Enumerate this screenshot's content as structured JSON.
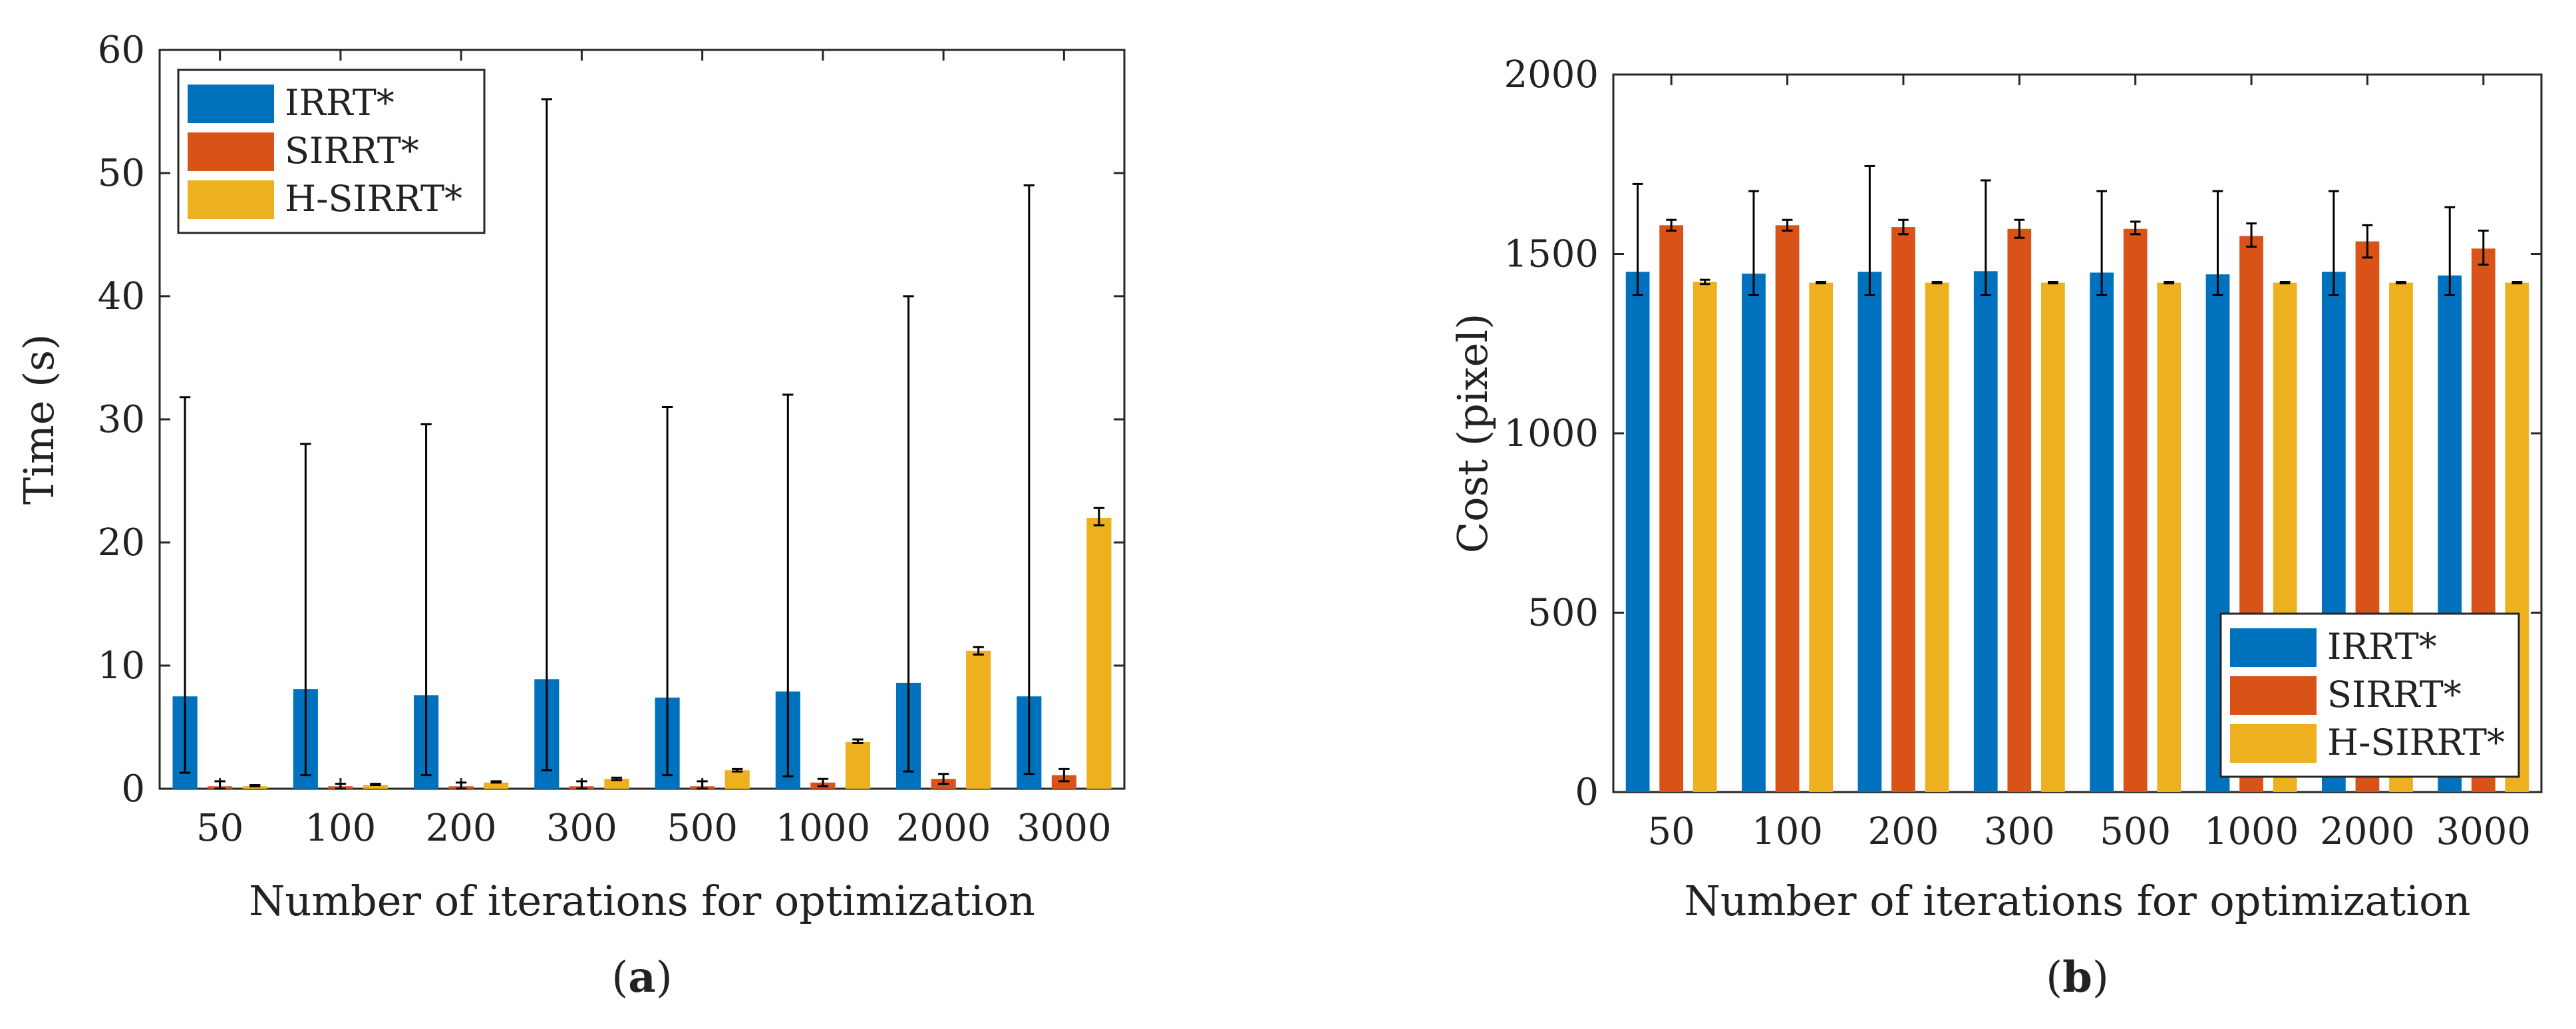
{
  "chart_data": [
    {
      "type": "bar",
      "panel_label": "a",
      "title": "",
      "xlabel": "Number of iterations for optimization",
      "ylabel": "Time (s)",
      "categories": [
        "50",
        "100",
        "200",
        "300",
        "500",
        "1000",
        "2000",
        "3000"
      ],
      "ylim": [
        0,
        60
      ],
      "yticks": [
        0,
        10,
        20,
        30,
        40,
        50,
        60
      ],
      "legend_position": "top-left",
      "series": [
        {
          "name": "IRRT*",
          "color": "#0072BD",
          "values": [
            7.5,
            8.1,
            7.6,
            8.9,
            7.4,
            7.9,
            8.6,
            7.5
          ],
          "err_low": [
            1.3,
            1.1,
            1.1,
            1.5,
            1.1,
            1.0,
            1.4,
            1.2
          ],
          "err_high": [
            31.8,
            28.0,
            29.6,
            56.0,
            31.0,
            32.0,
            40.0,
            49.0
          ]
        },
        {
          "name": "SIRRT*",
          "color": "#D95319",
          "values": [
            0.2,
            0.2,
            0.2,
            0.2,
            0.2,
            0.5,
            0.8,
            1.1
          ],
          "err_low": [
            0.0,
            0.0,
            0.0,
            0.0,
            0.0,
            0.2,
            0.4,
            0.6
          ],
          "err_high": [
            0.6,
            0.4,
            0.5,
            0.6,
            0.6,
            0.8,
            1.2,
            1.6
          ]
        },
        {
          "name": "H-SIRRT*",
          "color": "#EDB120",
          "values": [
            0.2,
            0.3,
            0.5,
            0.8,
            1.5,
            3.8,
            11.2,
            22.0
          ],
          "err_low": [
            0.2,
            0.3,
            0.5,
            0.7,
            1.4,
            3.7,
            10.9,
            21.4
          ],
          "err_high": [
            0.3,
            0.4,
            0.6,
            0.9,
            1.6,
            4.0,
            11.5,
            22.8
          ]
        }
      ]
    },
    {
      "type": "bar",
      "panel_label": "b",
      "title": "",
      "xlabel": "Number of iterations for optimization",
      "ylabel": "Cost (pixel)",
      "categories": [
        "50",
        "100",
        "200",
        "300",
        "500",
        "1000",
        "2000",
        "3000"
      ],
      "ylim": [
        0,
        2000
      ],
      "yticks": [
        0,
        500,
        1000,
        1500,
        2000
      ],
      "legend_position": "bottom-right",
      "series": [
        {
          "name": "IRRT*",
          "color": "#0072BD",
          "values": [
            1450,
            1445,
            1450,
            1452,
            1448,
            1443,
            1450,
            1440
          ],
          "err_low": [
            1385,
            1385,
            1385,
            1385,
            1385,
            1385,
            1385,
            1385
          ],
          "err_high": [
            1695,
            1675,
            1745,
            1705,
            1675,
            1675,
            1675,
            1630
          ]
        },
        {
          "name": "SIRRT*",
          "color": "#D95319",
          "values": [
            1580,
            1580,
            1575,
            1570,
            1570,
            1550,
            1535,
            1515
          ],
          "err_low": [
            1565,
            1565,
            1555,
            1545,
            1555,
            1520,
            1490,
            1470
          ],
          "err_high": [
            1595,
            1595,
            1595,
            1595,
            1590,
            1585,
            1580,
            1565
          ]
        },
        {
          "name": "H-SIRRT*",
          "color": "#EDB120",
          "values": [
            1422,
            1420,
            1420,
            1420,
            1420,
            1420,
            1420,
            1420
          ],
          "err_low": [
            1416,
            1418,
            1418,
            1418,
            1418,
            1418,
            1418,
            1418
          ],
          "err_high": [
            1428,
            1422,
            1422,
            1422,
            1422,
            1422,
            1422,
            1422
          ]
        }
      ]
    }
  ]
}
